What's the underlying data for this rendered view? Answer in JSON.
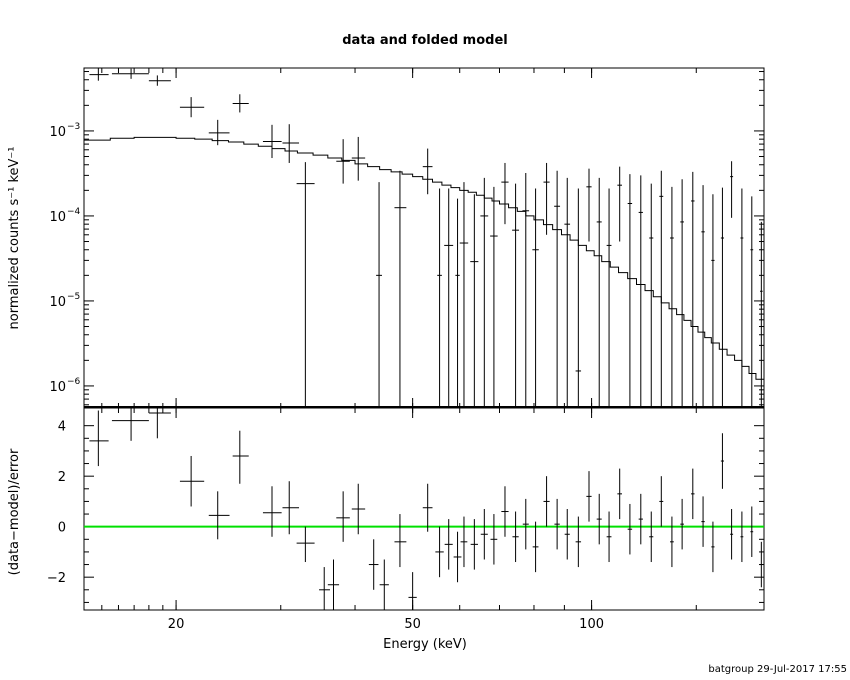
{
  "chart_data": {
    "type": "scatter",
    "title": "data and folded model",
    "xlabel": "Energy (keV)",
    "x_scale": "log",
    "x_range": [
      14,
      195
    ],
    "x_ticks": [
      {
        "value": 20,
        "label": "20"
      },
      {
        "value": 50,
        "label": "50"
      },
      {
        "value": 100,
        "label": "100"
      }
    ],
    "footer": "batgroup 29-Jul-2017 17:55",
    "top_panel": {
      "ylabel": "normalized counts s⁻¹ keV⁻¹",
      "y_scale": "log",
      "y_range": [
        5.5e-07,
        0.0055
      ],
      "y_ticks": [
        {
          "value": 0.001,
          "base": "10",
          "exp": "−3"
        },
        {
          "value": 0.0001,
          "base": "10",
          "exp": "−4"
        },
        {
          "value": 1e-05,
          "base": "10",
          "exp": "−5"
        },
        {
          "value": 1e-06,
          "base": "10",
          "exp": "−6"
        }
      ],
      "series": [
        {
          "type": "errorbar",
          "points": [
            [
              14.8,
              0.0046,
              14.3,
              15.4,
              0.0039,
              0.0055
            ],
            [
              16.8,
              0.0047,
              15.6,
              18.0,
              0.0041,
              0.0054
            ],
            [
              18.6,
              0.0039,
              18.0,
              19.6,
              0.0034,
              0.0045
            ],
            [
              21.2,
              0.0019,
              20.3,
              22.3,
              0.00145,
              0.0025
            ],
            [
              23.5,
              0.00095,
              22.7,
              24.6,
              0.00068,
              0.00135
            ],
            [
              25.6,
              0.0021,
              24.9,
              26.5,
              0.00165,
              0.0027
            ],
            [
              29.0,
              0.00075,
              28.0,
              30.1,
              0.00048,
              0.00118
            ],
            [
              31.0,
              0.00072,
              30.2,
              32.2,
              0.00042,
              0.0012
            ],
            [
              33.0,
              0.00024,
              31.9,
              34.2,
              5.5e-07,
              0.00043
            ],
            [
              38.2,
              0.00044,
              37.2,
              39.2,
              0.00024,
              0.0008
            ],
            [
              40.5,
              0.00048,
              39.5,
              41.6,
              0.00026,
              0.00085
            ],
            [
              43.9,
              2e-05,
              43.4,
              44.4,
              5.5e-07,
              0.00025
            ],
            [
              47.6,
              0.000125,
              46.6,
              48.8,
              5.5e-07,
              0.00034
            ],
            [
              53.0,
              0.00038,
              52.0,
              54.0,
              0.00018,
              0.00062
            ],
            [
              55.5,
              2e-05,
              55.0,
              56.0,
              5.5e-07,
              0.00021
            ],
            [
              57.5,
              4.5e-05,
              56.5,
              58.5,
              5.5e-07,
              0.00021
            ],
            [
              59.5,
              2e-05,
              59.0,
              60.0,
              5.5e-07,
              0.00016
            ],
            [
              61.0,
              4.8e-05,
              60.0,
              62.0,
              5.5e-07,
              0.00025
            ],
            [
              63.5,
              2.9e-05,
              62.5,
              64.5,
              5.5e-07,
              0.00018
            ],
            [
              66.0,
              0.0001,
              65.0,
              67.0,
              5.5e-07,
              0.00028
            ],
            [
              68.5,
              5.8e-05,
              67.5,
              69.5,
              5.5e-07,
              0.00022
            ],
            [
              71.5,
              0.00025,
              70.5,
              72.5,
              8e-05,
              0.00042
            ],
            [
              74.5,
              6.8e-05,
              73.5,
              75.5,
              5.5e-07,
              0.00024
            ],
            [
              77.5,
              0.000115,
              76.5,
              78.5,
              5.5e-07,
              0.00032
            ],
            [
              80.5,
              4e-05,
              79.5,
              81.5,
              5.5e-07,
              0.00021
            ],
            [
              84.0,
              0.00025,
              83.0,
              85.0,
              6e-05,
              0.00042
            ],
            [
              87.5,
              0.00013,
              86.5,
              88.5,
              5.5e-07,
              0.00034
            ],
            [
              91.0,
              8e-05,
              90.0,
              92.0,
              5.5e-07,
              0.00028
            ],
            [
              95.0,
              1.5e-06,
              94.0,
              96.0,
              5.5e-07,
              0.00021
            ],
            [
              99.0,
              0.00022,
              98.0,
              100.0,
              5e-05,
              0.00036
            ],
            [
              103.0,
              8.5e-05,
              102.0,
              104.0,
              5.5e-07,
              0.00028
            ],
            [
              107.0,
              4.5e-05,
              106.0,
              108.0,
              5.5e-07,
              0.00021
            ],
            [
              111.5,
              0.00023,
              110.5,
              112.5,
              5e-05,
              0.00038
            ],
            [
              116.0,
              0.00014,
              115.0,
              117.0,
              5.5e-07,
              0.00031
            ],
            [
              121.0,
              0.00011,
              120.0,
              122.0,
              5.5e-07,
              0.0003
            ],
            [
              126.0,
              5.5e-05,
              125.0,
              127.0,
              5.5e-07,
              0.00024
            ],
            [
              131.0,
              0.00017,
              130.0,
              132.0,
              5.5e-07,
              0.00034
            ],
            [
              136.5,
              5.5e-05,
              135.5,
              137.5,
              5.5e-07,
              0.00022
            ],
            [
              142.0,
              8.5e-05,
              141.0,
              143.0,
              5.5e-07,
              0.00027
            ],
            [
              148.0,
              0.00015,
              147.0,
              149.0,
              5.5e-07,
              0.00033
            ],
            [
              154.0,
              6.5e-05,
              153.0,
              155.0,
              5.5e-07,
              0.00023
            ],
            [
              160.0,
              3e-05,
              159.0,
              161.0,
              5.5e-07,
              0.00018
            ],
            [
              166.0,
              5.5e-05,
              165.0,
              167.0,
              5.5e-07,
              0.000215
            ],
            [
              172.0,
              0.00029,
              171.0,
              173.0,
              9.5e-05,
              0.00044
            ],
            [
              179.0,
              5.5e-05,
              178.0,
              180.0,
              5.5e-07,
              0.00021
            ],
            [
              186.0,
              4e-05,
              185.0,
              187.0,
              5.5e-07,
              0.00017
            ],
            [
              193.0,
              1.3e-05,
              192.0,
              194.0,
              5.5e-07,
              8.5e-05
            ]
          ]
        },
        {
          "type": "step",
          "points": [
            [
              14.0,
              0.00078
            ],
            [
              15.5,
              0.00082
            ],
            [
              17.0,
              0.00084
            ],
            [
              18.5,
              0.00084
            ],
            [
              20.0,
              0.00082
            ],
            [
              21.5,
              0.0008
            ],
            [
              23.0,
              0.00077
            ],
            [
              24.5,
              0.00074
            ],
            [
              26.0,
              0.0007
            ],
            [
              27.5,
              0.00066
            ],
            [
              29.0,
              0.00062
            ],
            [
              30.5,
              0.00058
            ],
            [
              32.0,
              0.00055
            ],
            [
              34.0,
              0.00052
            ],
            [
              36.0,
              0.00048
            ],
            [
              38.0,
              0.00045
            ],
            [
              40.0,
              0.00041
            ],
            [
              42.0,
              0.00038
            ],
            [
              44.0,
              0.00035
            ],
            [
              46.0,
              0.00033
            ],
            [
              48.0,
              0.00031
            ],
            [
              50.0,
              0.00029
            ],
            [
              52.0,
              0.00027
            ],
            [
              54.0,
              0.00025
            ],
            [
              56.0,
              0.00023
            ],
            [
              58.0,
              0.000215
            ],
            [
              60.0,
              0.0002
            ],
            [
              62.0,
              0.00019
            ],
            [
              64.0,
              0.000175
            ],
            [
              66.0,
              0.000162
            ],
            [
              68.0,
              0.00015
            ],
            [
              70.0,
              0.000138
            ],
            [
              72.5,
              0.000125
            ],
            [
              75.0,
              0.000113
            ],
            [
              77.5,
              0.0001
            ],
            [
              80.0,
              9e-05
            ],
            [
              83.0,
              7.9e-05
            ],
            [
              86.0,
              6.9e-05
            ],
            [
              89.0,
              6e-05
            ],
            [
              92.0,
              5.2e-05
            ],
            [
              95.0,
              4.5e-05
            ],
            [
              98.0,
              3.9e-05
            ],
            [
              101.0,
              3.4e-05
            ],
            [
              104.0,
              2.9e-05
            ],
            [
              107.5,
              2.5e-05
            ],
            [
              111.0,
              2.15e-05
            ],
            [
              115.0,
              1.83e-05
            ],
            [
              119.0,
              1.56e-05
            ],
            [
              123.0,
              1.32e-05
            ],
            [
              127.0,
              1.12e-05
            ],
            [
              131.0,
              9.5e-06
            ],
            [
              135.0,
              8.1e-06
            ],
            [
              139.0,
              6.9e-06
            ],
            [
              143.0,
              5.9e-06
            ],
            [
              147.0,
              5e-06
            ],
            [
              151.0,
              4.3e-06
            ],
            [
              155.0,
              3.7e-06
            ],
            [
              159.0,
              3.2e-06
            ],
            [
              164.0,
              2.7e-06
            ],
            [
              169.0,
              2.3e-06
            ],
            [
              174.0,
              2e-06
            ],
            [
              179.0,
              1.7e-06
            ],
            [
              184.0,
              1.4e-06
            ],
            [
              189.0,
              1.2e-06
            ],
            [
              195.0,
              1.1e-06
            ]
          ]
        }
      ]
    },
    "bottom_panel": {
      "ylabel": "(data−model)/error",
      "y_scale": "linear",
      "y_range": [
        -3.3,
        4.7
      ],
      "y_ticks": [
        {
          "value": 4,
          "label": "4"
        },
        {
          "value": 2,
          "label": "2"
        },
        {
          "value": 0,
          "label": "0"
        },
        {
          "value": -2,
          "label": "−2"
        }
      ],
      "zero_line_color": "#00e000",
      "points": [
        [
          14.8,
          3.4,
          14.3,
          15.4,
          2.4,
          4.6
        ],
        [
          16.8,
          4.2,
          15.6,
          18.0,
          3.4,
          5.0
        ],
        [
          18.6,
          4.5,
          18.0,
          19.6,
          3.5,
          5.0
        ],
        [
          21.2,
          1.8,
          20.3,
          22.3,
          0.8,
          2.8
        ],
        [
          23.5,
          0.45,
          22.7,
          24.6,
          -0.5,
          1.4
        ],
        [
          25.6,
          2.8,
          24.9,
          26.5,
          1.7,
          3.8
        ],
        [
          29.0,
          0.55,
          28.0,
          30.1,
          -0.4,
          1.6
        ],
        [
          31.0,
          0.75,
          30.2,
          32.2,
          -0.3,
          1.8
        ],
        [
          33.0,
          -0.65,
          31.9,
          34.2,
          -1.4,
          0.0
        ],
        [
          35.5,
          -2.5,
          34.8,
          36.3,
          -3.3,
          -1.6
        ],
        [
          36.8,
          -2.3,
          36.0,
          37.6,
          -3.3,
          -1.3
        ],
        [
          38.2,
          0.35,
          37.2,
          39.2,
          -0.6,
          1.4
        ],
        [
          40.5,
          0.7,
          39.5,
          41.6,
          -0.3,
          1.7
        ],
        [
          43.0,
          -1.5,
          42.2,
          43.8,
          -2.5,
          -0.5
        ],
        [
          44.8,
          -2.3,
          44.0,
          45.6,
          -3.3,
          -1.3
        ],
        [
          47.6,
          -0.6,
          46.6,
          48.8,
          -1.6,
          0.5
        ],
        [
          50.0,
          -2.8,
          49.2,
          50.8,
          -3.3,
          -1.8
        ],
        [
          53.0,
          0.75,
          52.0,
          54.0,
          -0.2,
          1.7
        ],
        [
          55.5,
          -1.0,
          54.6,
          56.4,
          -2.0,
          0.0
        ],
        [
          57.5,
          -0.7,
          56.6,
          58.4,
          -1.7,
          0.3
        ],
        [
          59.5,
          -1.2,
          58.6,
          60.4,
          -2.2,
          -0.2
        ],
        [
          61.0,
          -0.6,
          60.2,
          61.8,
          -1.6,
          0.4
        ],
        [
          63.5,
          -0.7,
          62.6,
          64.4,
          -1.7,
          0.3
        ],
        [
          66.0,
          -0.3,
          65.1,
          66.9,
          -1.3,
          0.7
        ],
        [
          68.5,
          -0.5,
          67.6,
          69.4,
          -1.5,
          0.5
        ],
        [
          71.5,
          0.6,
          70.5,
          72.5,
          -0.4,
          1.6
        ],
        [
          74.5,
          -0.4,
          73.6,
          75.4,
          -1.4,
          0.6
        ],
        [
          77.5,
          0.1,
          76.6,
          78.4,
          -0.9,
          1.1
        ],
        [
          80.5,
          -0.8,
          79.6,
          81.4,
          -1.8,
          0.2
        ],
        [
          84.0,
          1.0,
          83.0,
          85.0,
          0.0,
          2.0
        ],
        [
          87.5,
          0.1,
          86.6,
          88.4,
          -0.9,
          1.1
        ],
        [
          91.0,
          -0.3,
          90.1,
          91.9,
          -1.3,
          0.7
        ],
        [
          95.0,
          -0.6,
          94.0,
          96.0,
          -1.6,
          0.4
        ],
        [
          99.0,
          1.2,
          98.0,
          100.0,
          0.2,
          2.2
        ],
        [
          103.0,
          0.3,
          102.0,
          104.0,
          -0.7,
          1.3
        ],
        [
          107.0,
          -0.4,
          106.0,
          108.0,
          -1.4,
          0.6
        ],
        [
          111.5,
          1.3,
          110.5,
          112.5,
          0.3,
          2.3
        ],
        [
          116.0,
          -0.1,
          115.0,
          117.0,
          -1.1,
          0.9
        ],
        [
          121.0,
          0.3,
          120.0,
          122.0,
          -0.7,
          1.3
        ],
        [
          126.0,
          -0.4,
          125.0,
          127.0,
          -1.4,
          0.6
        ],
        [
          131.0,
          1.0,
          130.0,
          132.0,
          0.0,
          2.0
        ],
        [
          136.5,
          -0.6,
          135.5,
          137.5,
          -1.6,
          0.4
        ],
        [
          142.0,
          0.1,
          141.0,
          143.0,
          -0.9,
          1.1
        ],
        [
          148.0,
          1.3,
          147.0,
          149.0,
          0.3,
          2.3
        ],
        [
          154.0,
          0.2,
          153.0,
          155.0,
          -0.8,
          1.2
        ],
        [
          160.0,
          -0.8,
          159.0,
          161.0,
          -1.8,
          0.2
        ],
        [
          166.0,
          2.6,
          165.0,
          167.0,
          1.5,
          3.7
        ],
        [
          172.0,
          -0.3,
          171.0,
          173.0,
          -1.3,
          0.7
        ],
        [
          179.0,
          -0.4,
          178.0,
          180.0,
          -1.4,
          0.6
        ],
        [
          186.0,
          -0.2,
          185.0,
          187.0,
          -1.2,
          0.8
        ],
        [
          193.0,
          -1.5,
          192.0,
          194.0,
          -2.4,
          -0.6
        ]
      ]
    }
  }
}
